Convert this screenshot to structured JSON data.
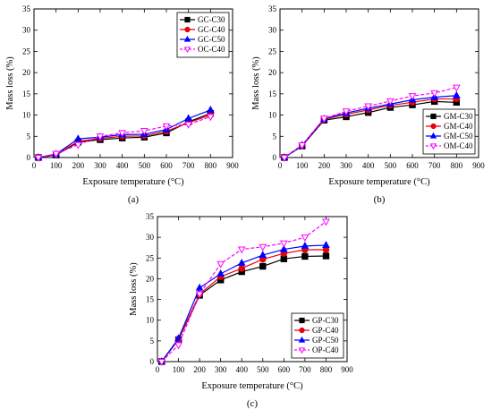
{
  "colors": {
    "C30": "#000000",
    "C40": "#e8000b",
    "C50": "#0000ff",
    "C40_alt": "#ff00ff"
  },
  "chart_data": [
    {
      "panel_label": "(a)",
      "type": "line",
      "xlabel": "Exposure temperature (°C)",
      "ylabel": "Mass loss (%)",
      "xlim": [
        0,
        900
      ],
      "ylim": [
        0,
        35
      ],
      "xticks": [
        0,
        100,
        200,
        300,
        400,
        500,
        600,
        700,
        800,
        900
      ],
      "yticks": [
        0,
        5,
        10,
        15,
        20,
        25,
        30,
        35
      ],
      "legend_position": "top-right",
      "grid": false,
      "x": [
        20,
        100,
        200,
        300,
        400,
        500,
        600,
        700,
        800
      ],
      "series": [
        {
          "name": "GC-C30",
          "color": "#000000",
          "marker": "square",
          "dash": false,
          "values": [
            0,
            0.6,
            3.6,
            4.2,
            4.6,
            4.8,
            5.8,
            8.4,
            10.4
          ]
        },
        {
          "name": "GC-C40",
          "color": "#e8000b",
          "marker": "circle",
          "dash": false,
          "values": [
            0,
            0.7,
            3.8,
            4.5,
            5.0,
            5.1,
            6.2,
            8.2,
            10.0
          ]
        },
        {
          "name": "GC-C50",
          "color": "#0000ff",
          "marker": "triangle-up",
          "dash": false,
          "values": [
            0,
            0.8,
            4.4,
            4.8,
            5.4,
            5.5,
            6.6,
            9.2,
            11.2
          ]
        },
        {
          "name": "OC-C40",
          "color": "#ff00ff",
          "marker": "triangle-down",
          "dash": true,
          "values": [
            0,
            0.9,
            3.0,
            5.0,
            5.8,
            6.3,
            7.4,
            7.8,
            9.6
          ]
        }
      ]
    },
    {
      "panel_label": "(b)",
      "type": "line",
      "xlabel": "Exposure temperature (°C)",
      "ylabel": "Mass loss (%)",
      "xlim": [
        0,
        900
      ],
      "ylim": [
        0,
        35
      ],
      "xticks": [
        0,
        100,
        200,
        300,
        400,
        500,
        600,
        700,
        800,
        900
      ],
      "yticks": [
        0,
        5,
        10,
        15,
        20,
        25,
        30,
        35
      ],
      "legend_position": "bottom-right",
      "grid": false,
      "x": [
        20,
        100,
        200,
        300,
        400,
        500,
        600,
        700,
        800
      ],
      "series": [
        {
          "name": "GM-C30",
          "color": "#000000",
          "marker": "square",
          "dash": false,
          "values": [
            0,
            2.7,
            8.8,
            9.6,
            10.6,
            11.8,
            12.4,
            13.2,
            13.0
          ]
        },
        {
          "name": "GM-C40",
          "color": "#e8000b",
          "marker": "circle",
          "dash": false,
          "values": [
            0,
            2.8,
            9.0,
            10.2,
            11.2,
            12.3,
            13.0,
            13.8,
            13.8
          ]
        },
        {
          "name": "GM-C50",
          "color": "#0000ff",
          "marker": "triangle-up",
          "dash": false,
          "values": [
            0,
            2.9,
            9.1,
            10.5,
            11.6,
            12.6,
            13.6,
            14.2,
            14.6
          ]
        },
        {
          "name": "OM-C40",
          "color": "#ff00ff",
          "marker": "triangle-down",
          "dash": true,
          "values": [
            0,
            2.9,
            9.2,
            10.9,
            12.1,
            13.3,
            14.5,
            15.2,
            16.5
          ]
        }
      ]
    },
    {
      "panel_label": "(c)",
      "type": "line",
      "xlabel": "Exposure temperature (°C)",
      "ylabel": "Mass loss (%)",
      "xlim": [
        0,
        900
      ],
      "ylim": [
        0,
        35
      ],
      "xticks": [
        0,
        100,
        200,
        300,
        400,
        500,
        600,
        700,
        800,
        900
      ],
      "yticks": [
        0,
        5,
        10,
        15,
        20,
        25,
        30,
        35
      ],
      "legend_position": "bottom-right",
      "grid": false,
      "x": [
        20,
        100,
        200,
        300,
        400,
        500,
        600,
        700,
        800
      ],
      "series": [
        {
          "name": "GP-C30",
          "color": "#000000",
          "marker": "square",
          "dash": false,
          "values": [
            0,
            5.3,
            16.0,
            19.7,
            21.7,
            23.0,
            24.8,
            25.4,
            25.5
          ]
        },
        {
          "name": "GP-C40",
          "color": "#e8000b",
          "marker": "circle",
          "dash": false,
          "values": [
            0,
            5.4,
            16.3,
            20.5,
            22.5,
            24.7,
            26.1,
            27.0,
            27.0
          ]
        },
        {
          "name": "GP-C50",
          "color": "#0000ff",
          "marker": "triangle-up",
          "dash": false,
          "values": [
            0,
            5.6,
            17.8,
            21.2,
            23.8,
            25.7,
            27.1,
            27.9,
            28.1
          ]
        },
        {
          "name": "OP-C40",
          "color": "#ff00ff",
          "marker": "triangle-down",
          "dash": true,
          "values": [
            0,
            4.0,
            16.3,
            23.6,
            27.1,
            27.7,
            28.6,
            30.0,
            33.8
          ]
        }
      ]
    }
  ]
}
